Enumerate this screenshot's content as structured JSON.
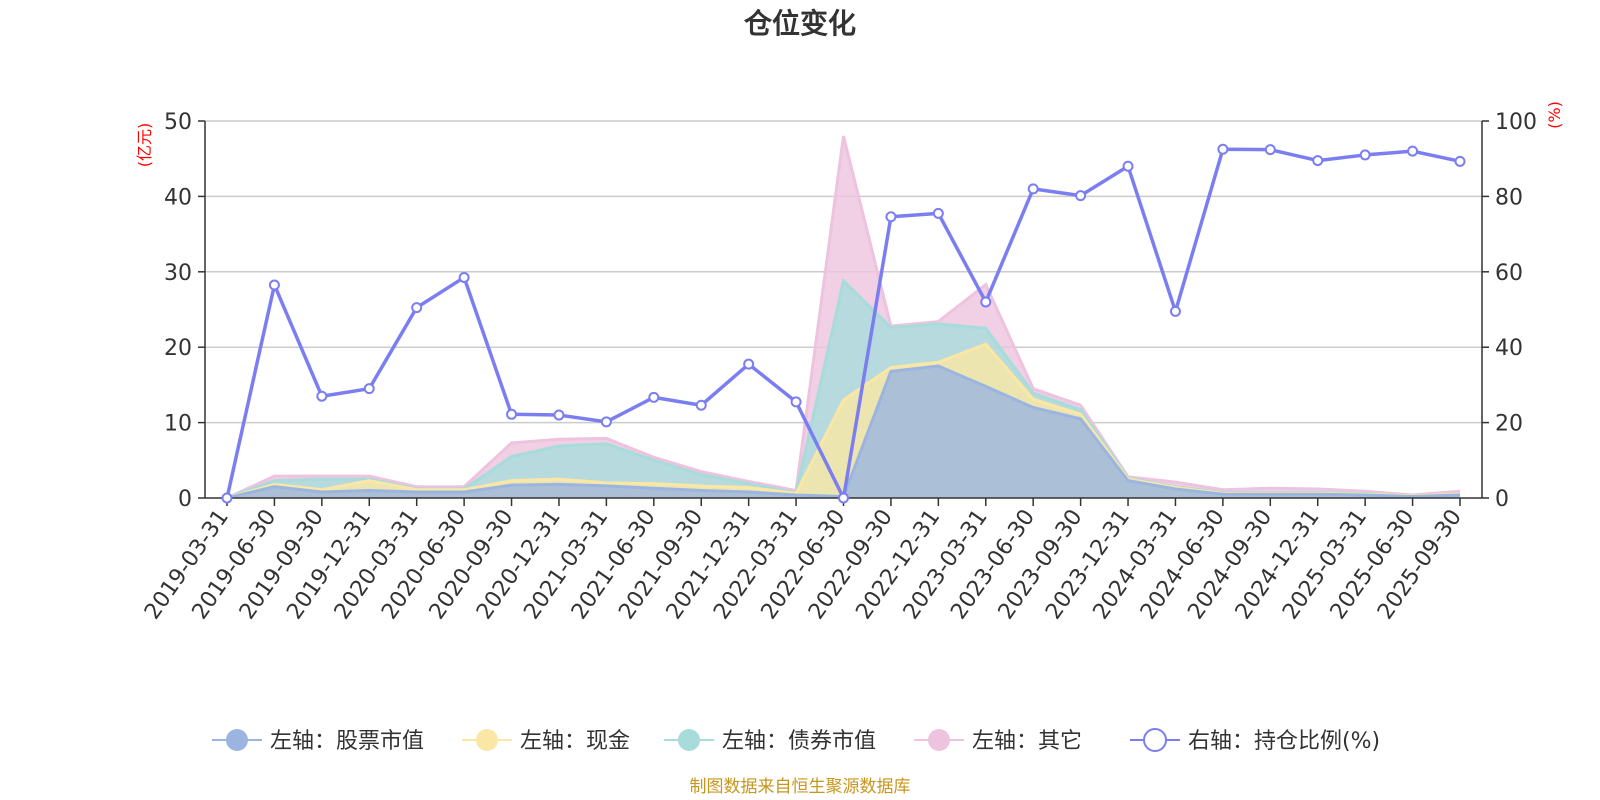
{
  "chart_data": {
    "type": "area",
    "title": "仓位变化",
    "left_axis_unit": "(亿元)",
    "right_axis_unit": "(%)",
    "left_ylim": [
      0,
      50
    ],
    "left_ticks": [
      0,
      10,
      20,
      30,
      40,
      50
    ],
    "right_ylim": [
      0,
      100
    ],
    "right_ticks": [
      0,
      20,
      40,
      60,
      80,
      100
    ],
    "categories": [
      "2019-03-31",
      "2019-06-30",
      "2019-09-30",
      "2019-12-31",
      "2020-03-31",
      "2020-06-30",
      "2020-09-30",
      "2020-12-31",
      "2021-03-31",
      "2021-06-30",
      "2021-09-30",
      "2021-12-31",
      "2022-03-31",
      "2022-06-30",
      "2022-09-30",
      "2022-12-31",
      "2023-03-31",
      "2023-06-30",
      "2023-09-30",
      "2023-12-31",
      "2024-03-31",
      "2024-06-30",
      "2024-09-30",
      "2024-12-31",
      "2025-03-31",
      "2025-06-30",
      "2025-09-30"
    ],
    "stacked_series": [
      {
        "name": "左轴：股票市值",
        "color": "#9bb5e0",
        "values": [
          0,
          1.5,
          0.8,
          1.0,
          0.8,
          0.8,
          1.7,
          1.8,
          1.6,
          1.3,
          1.0,
          0.8,
          0.4,
          0.2,
          16.8,
          17.5,
          14.8,
          12.0,
          10.5,
          2.3,
          1.2,
          0.5,
          0.5,
          0.5,
          0.4,
          0.2,
          0.4
        ]
      },
      {
        "name": "左轴：现金",
        "color": "#fae7a5",
        "values": [
          0,
          0.3,
          0.3,
          1.3,
          0.3,
          0.3,
          0.6,
          0.7,
          0.4,
          0.6,
          0.6,
          0.6,
          0.2,
          12.8,
          0.5,
          0.5,
          5.6,
          1.1,
          0.6,
          0.2,
          0.2,
          0.1,
          0.1,
          0.1,
          0.1,
          0.1,
          0.1
        ]
      },
      {
        "name": "左轴：债券市值",
        "color": "#a8dcdb",
        "values": [
          0,
          0.5,
          1.4,
          0.2,
          0.1,
          0.1,
          3.2,
          4.4,
          5.2,
          3.1,
          1.5,
          0.5,
          0.1,
          15.8,
          5.3,
          5.1,
          2.1,
          0.8,
          0.6,
          0.1,
          0.1,
          0.1,
          0.1,
          0.1,
          0.1,
          0.0,
          0.0
        ]
      },
      {
        "name": "左轴：其它",
        "color": "#edc3de",
        "values": [
          0,
          0.6,
          0.4,
          0.4,
          0.3,
          0.3,
          1.8,
          0.9,
          0.7,
          0.4,
          0.4,
          0.3,
          0.3,
          19.2,
          0.2,
          0.3,
          5.8,
          0.6,
          0.6,
          0.2,
          0.6,
          0.4,
          0.6,
          0.5,
          0.3,
          0.1,
          0.4
        ]
      }
    ],
    "line_series": {
      "name": "右轴：持仓比例(%)",
      "color": "#7b7ef0",
      "values": [
        0,
        56.5,
        27.0,
        29.0,
        50.5,
        58.5,
        22.2,
        22.0,
        20.2,
        26.7,
        24.6,
        35.5,
        25.5,
        0,
        74.6,
        75.5,
        52.0,
        82.0,
        80.2,
        88.0,
        49.5,
        92.5,
        92.4,
        89.5,
        91.0,
        92.0,
        89.3
      ]
    },
    "legend": [
      {
        "label": "左轴：股票市值",
        "color": "#9bb5e0",
        "type": "dot"
      },
      {
        "label": "左轴：现金",
        "color": "#fae7a5",
        "type": "dot"
      },
      {
        "label": "左轴：债券市值",
        "color": "#a8dcdb",
        "type": "dot"
      },
      {
        "label": "左轴：其它",
        "color": "#edc3de",
        "type": "dot"
      },
      {
        "label": "右轴：持仓比例(%)",
        "color": "#7b7ef0",
        "type": "ring"
      }
    ],
    "legend_position": "bottom",
    "grid": true
  },
  "source_note": "制图数据来自恒生聚源数据库"
}
